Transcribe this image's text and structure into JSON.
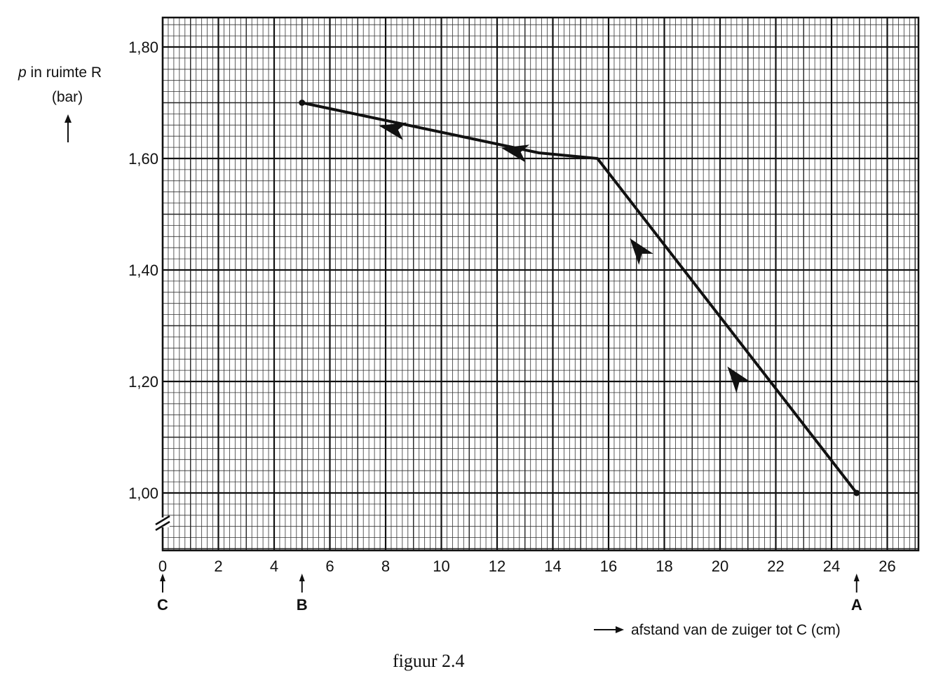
{
  "chart_data": {
    "type": "line",
    "xlabel": "afstand van de zuiger tot C (cm)",
    "ylabel_var": "p",
    "ylabel_rest": " in ruimte R",
    "ylabel_unit": "(bar)",
    "xlim": [
      0,
      27
    ],
    "ylim": [
      0.9,
      1.85
    ],
    "grid": true,
    "axis_break": "y",
    "x_ticks": [
      0,
      2,
      4,
      6,
      8,
      10,
      12,
      14,
      16,
      18,
      20,
      22,
      24,
      26
    ],
    "x_tick_labels": [
      "0",
      "2",
      "4",
      "6",
      "8",
      "10",
      "12",
      "14",
      "16",
      "18",
      "20",
      "22",
      "24",
      "26"
    ],
    "y_ticks": [
      1.0,
      1.2,
      1.4,
      1.6,
      1.8
    ],
    "y_tick_labels": [
      "1,00",
      "1,20",
      "1,40",
      "1,60",
      "1,80"
    ],
    "series": [
      {
        "x": [
          24.9,
          15.6,
          13.5,
          5.0
        ],
        "y": [
          1.0,
          1.6,
          1.61,
          1.7
        ]
      }
    ],
    "arrows": [
      {
        "x": 20.6,
        "y": 1.205
      },
      {
        "x": 17.1,
        "y": 1.435
      },
      {
        "x": 12.7,
        "y": 1.613
      },
      {
        "x": 8.3,
        "y": 1.653
      }
    ],
    "position_markers": [
      {
        "label": "C",
        "x": 0
      },
      {
        "label": "B",
        "x": 5
      },
      {
        "label": "A",
        "x": 24.9
      }
    ]
  },
  "caption": "figuur 2.4"
}
